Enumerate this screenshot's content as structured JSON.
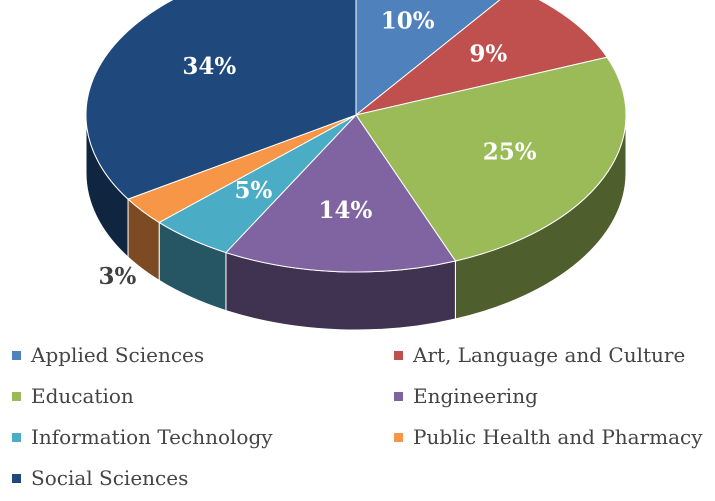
{
  "chart_data": {
    "type": "pie",
    "style": "3d",
    "title": "",
    "categories": [
      "Applied Sciences",
      "Art, Language and Culture",
      "Education",
      "Engineering",
      "Information Technology",
      "Public Health and Pharmacy",
      "Social Sciences"
    ],
    "values": [
      10,
      9,
      25,
      14,
      5,
      3,
      34
    ],
    "labels": [
      "10%",
      "9%",
      "25%",
      "14%",
      "5%",
      "3%",
      "34%"
    ],
    "colors": [
      "#4f81bd",
      "#c0504d",
      "#9bbb59",
      "#8064a2",
      "#4bacc6",
      "#f79646",
      "#1f497d"
    ],
    "legend_position": "bottom"
  }
}
